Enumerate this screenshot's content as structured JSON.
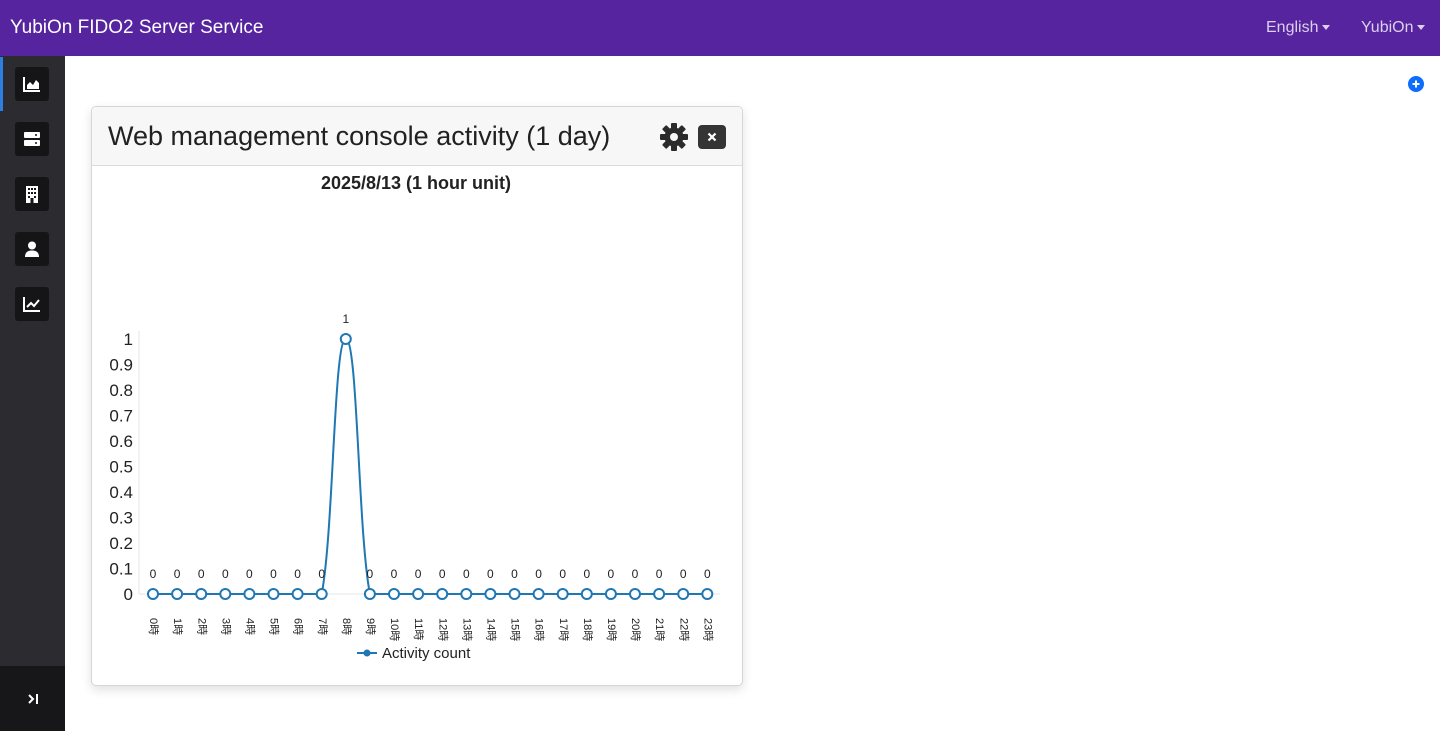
{
  "header": {
    "brand": "YubiOn FIDO2 Server Service",
    "language": "English",
    "user": "YubiOn"
  },
  "sidebar": {
    "items": [
      {
        "icon": "area-chart-icon",
        "active": true
      },
      {
        "icon": "server-icon",
        "active": false
      },
      {
        "icon": "building-icon",
        "active": false
      },
      {
        "icon": "user-icon",
        "active": false
      },
      {
        "icon": "line-chart-icon",
        "active": false
      }
    ],
    "toggle_icon": "collapse-toggle-icon"
  },
  "widget": {
    "title": "Web management console activity (1 day)",
    "settings_icon": "gear-icon",
    "close_icon": "close-icon"
  },
  "chart_data": {
    "type": "line",
    "title": "2025/8/13 (1 hour unit)",
    "categories": [
      "0時",
      "1時",
      "2時",
      "3時",
      "4時",
      "5時",
      "6時",
      "7時",
      "8時",
      "9時",
      "10時",
      "11時",
      "12時",
      "13時",
      "14時",
      "15時",
      "16時",
      "17時",
      "18時",
      "19時",
      "20時",
      "21時",
      "22時",
      "23時"
    ],
    "series": [
      {
        "name": "Activity count",
        "values": [
          0,
          0,
          0,
          0,
          0,
          0,
          0,
          0,
          1,
          0,
          0,
          0,
          0,
          0,
          0,
          0,
          0,
          0,
          0,
          0,
          0,
          0,
          0,
          0
        ]
      }
    ],
    "ylim": [
      0,
      1
    ],
    "yticks": [
      "0",
      "0.1",
      "0.2",
      "0.3",
      "0.4",
      "0.5",
      "0.6",
      "0.7",
      "0.8",
      "0.9",
      "1"
    ],
    "xlabel": "",
    "ylabel": "",
    "legend": "bottom",
    "line_color": "#1f77b4",
    "data_labels": true
  }
}
